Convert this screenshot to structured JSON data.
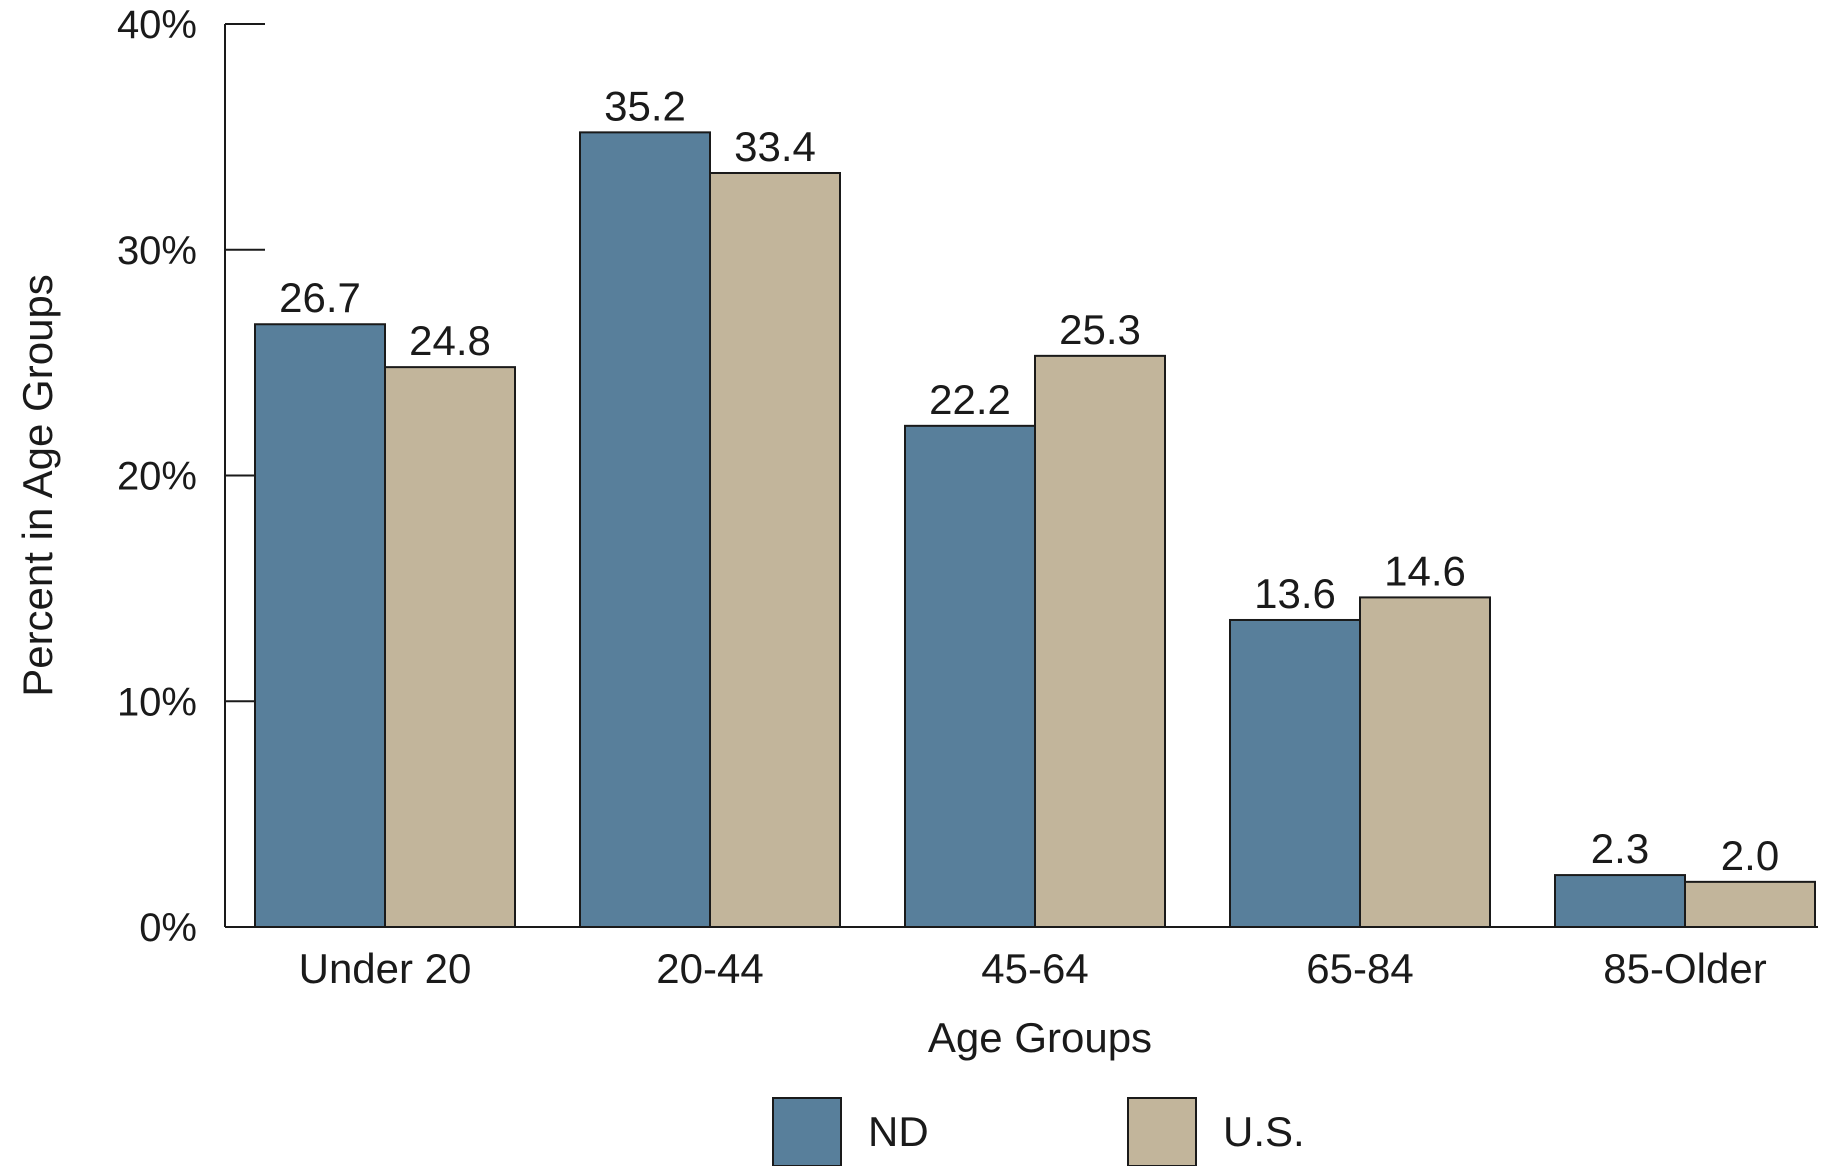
{
  "chart_data": {
    "type": "bar",
    "title": "",
    "xlabel": "Age Groups",
    "ylabel": "Percent in Age Groups",
    "ylim": [
      0,
      40
    ],
    "yticks": [
      "0%",
      "10%",
      "20%",
      "30%",
      "40%"
    ],
    "ytick_values": [
      0,
      10,
      20,
      30,
      40
    ],
    "grid": false,
    "legend_position": "bottom-center",
    "categories": [
      "Under 20",
      "20-44",
      "45-64",
      "65-84",
      "85-Older"
    ],
    "series": [
      {
        "name": "ND",
        "color": "#587f9b",
        "values": [
          26.7,
          35.2,
          22.2,
          13.6,
          2.3
        ],
        "labels": [
          "26.7",
          "35.2",
          "22.2",
          "13.6",
          "2.3"
        ]
      },
      {
        "name": "U.S.",
        "color": "#c2b59b",
        "values": [
          24.8,
          33.4,
          25.3,
          14.6,
          2.0
        ],
        "labels": [
          "24.8",
          "33.4",
          "25.3",
          "14.6",
          "2.0"
        ]
      }
    ]
  }
}
